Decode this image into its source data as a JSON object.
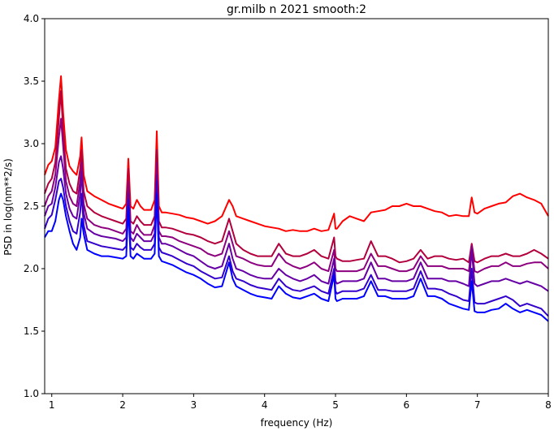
{
  "chart_data": {
    "type": "line",
    "title": "gr.milb n 2021 smooth:2",
    "xlabel": "frequency (Hz)",
    "ylabel": "PSD in log(nm**2/s)",
    "xlim": [
      0.9,
      8.0
    ],
    "ylim": [
      1.0,
      4.0
    ],
    "xticks": [
      "1",
      "2",
      "3",
      "4",
      "5",
      "6",
      "7",
      "8"
    ],
    "yticks": [
      "1.0",
      "1.5",
      "2.0",
      "2.5",
      "3.0",
      "3.5",
      "4.0"
    ],
    "grid": false,
    "legend": "none",
    "series": [
      {
        "color": "#ff0000",
        "x": [
          0.9,
          0.95,
          1.0,
          1.05,
          1.1,
          1.13,
          1.16,
          1.2,
          1.25,
          1.3,
          1.35,
          1.4,
          1.42,
          1.45,
          1.5,
          1.6,
          1.7,
          1.8,
          1.9,
          2.0,
          2.05,
          2.08,
          2.11,
          2.15,
          2.2,
          2.25,
          2.3,
          2.4,
          2.45,
          2.48,
          2.51,
          2.55,
          2.6,
          2.7,
          2.8,
          2.9,
          3.0,
          3.1,
          3.2,
          3.3,
          3.4,
          3.5,
          3.55,
          3.6,
          3.7,
          3.8,
          3.9,
          4.0,
          4.1,
          4.2,
          4.3,
          4.4,
          4.5,
          4.6,
          4.7,
          4.8,
          4.9,
          4.98,
          5.0,
          5.02,
          5.1,
          5.2,
          5.3,
          5.4,
          5.5,
          5.6,
          5.7,
          5.8,
          5.9,
          6.0,
          6.1,
          6.2,
          6.3,
          6.4,
          6.5,
          6.6,
          6.7,
          6.8,
          6.88,
          6.92,
          6.96,
          7.0,
          7.1,
          7.2,
          7.3,
          7.4,
          7.5,
          7.6,
          7.7,
          7.8,
          7.9,
          8.0
        ],
        "y": [
          2.75,
          2.83,
          2.86,
          2.97,
          3.35,
          3.54,
          3.25,
          2.95,
          2.82,
          2.78,
          2.75,
          2.9,
          3.05,
          2.75,
          2.62,
          2.58,
          2.55,
          2.52,
          2.5,
          2.48,
          2.52,
          2.88,
          2.5,
          2.48,
          2.55,
          2.5,
          2.47,
          2.47,
          2.55,
          3.1,
          2.5,
          2.45,
          2.45,
          2.44,
          2.43,
          2.41,
          2.4,
          2.38,
          2.36,
          2.38,
          2.42,
          2.55,
          2.5,
          2.42,
          2.4,
          2.38,
          2.36,
          2.34,
          2.33,
          2.32,
          2.3,
          2.31,
          2.3,
          2.3,
          2.32,
          2.3,
          2.31,
          2.44,
          2.32,
          2.32,
          2.38,
          2.42,
          2.4,
          2.38,
          2.45,
          2.46,
          2.47,
          2.5,
          2.5,
          2.52,
          2.5,
          2.5,
          2.48,
          2.46,
          2.45,
          2.42,
          2.43,
          2.42,
          2.42,
          2.57,
          2.45,
          2.44,
          2.48,
          2.5,
          2.52,
          2.53,
          2.58,
          2.6,
          2.57,
          2.55,
          2.52,
          2.42
        ]
      },
      {
        "color": "#b2003f",
        "x": [
          0.9,
          0.95,
          1.0,
          1.05,
          1.1,
          1.13,
          1.16,
          1.2,
          1.25,
          1.3,
          1.35,
          1.4,
          1.42,
          1.45,
          1.5,
          1.6,
          1.7,
          1.8,
          1.9,
          2.0,
          2.05,
          2.08,
          2.11,
          2.15,
          2.2,
          2.25,
          2.3,
          2.4,
          2.45,
          2.48,
          2.51,
          2.55,
          2.6,
          2.7,
          2.8,
          2.9,
          3.0,
          3.1,
          3.2,
          3.3,
          3.4,
          3.5,
          3.55,
          3.6,
          3.7,
          3.8,
          3.9,
          4.0,
          4.1,
          4.2,
          4.3,
          4.4,
          4.5,
          4.6,
          4.7,
          4.8,
          4.9,
          4.98,
          5.0,
          5.02,
          5.1,
          5.2,
          5.3,
          5.4,
          5.5,
          5.6,
          5.7,
          5.8,
          5.9,
          6.0,
          6.1,
          6.2,
          6.3,
          6.4,
          6.5,
          6.6,
          6.7,
          6.8,
          6.88,
          6.92,
          6.96,
          7.0,
          7.1,
          7.2,
          7.3,
          7.4,
          7.5,
          7.6,
          7.7,
          7.8,
          7.9,
          8.0
        ],
        "y": [
          2.6,
          2.68,
          2.72,
          2.85,
          3.2,
          3.42,
          3.1,
          2.8,
          2.68,
          2.62,
          2.6,
          2.8,
          2.95,
          2.62,
          2.5,
          2.45,
          2.42,
          2.4,
          2.38,
          2.36,
          2.4,
          2.8,
          2.38,
          2.36,
          2.42,
          2.38,
          2.35,
          2.35,
          2.42,
          2.95,
          2.38,
          2.33,
          2.33,
          2.32,
          2.3,
          2.28,
          2.27,
          2.25,
          2.22,
          2.2,
          2.22,
          2.4,
          2.3,
          2.2,
          2.15,
          2.12,
          2.1,
          2.1,
          2.1,
          2.2,
          2.12,
          2.1,
          2.1,
          2.12,
          2.15,
          2.1,
          2.08,
          2.25,
          2.1,
          2.08,
          2.06,
          2.06,
          2.07,
          2.08,
          2.22,
          2.1,
          2.1,
          2.08,
          2.05,
          2.06,
          2.08,
          2.15,
          2.08,
          2.1,
          2.1,
          2.08,
          2.07,
          2.08,
          2.05,
          2.2,
          2.06,
          2.05,
          2.08,
          2.1,
          2.1,
          2.12,
          2.1,
          2.1,
          2.12,
          2.15,
          2.12,
          2.08
        ]
      },
      {
        "color": "#8c007f",
        "x": [
          0.9,
          0.95,
          1.0,
          1.05,
          1.1,
          1.13,
          1.16,
          1.2,
          1.25,
          1.3,
          1.35,
          1.4,
          1.42,
          1.45,
          1.5,
          1.6,
          1.7,
          1.8,
          1.9,
          2.0,
          2.05,
          2.08,
          2.11,
          2.15,
          2.2,
          2.25,
          2.3,
          2.4,
          2.45,
          2.48,
          2.51,
          2.55,
          2.6,
          2.7,
          2.8,
          2.9,
          3.0,
          3.1,
          3.2,
          3.3,
          3.4,
          3.5,
          3.55,
          3.6,
          3.7,
          3.8,
          3.9,
          4.0,
          4.1,
          4.2,
          4.3,
          4.4,
          4.5,
          4.6,
          4.7,
          4.8,
          4.9,
          4.98,
          5.0,
          5.02,
          5.1,
          5.2,
          5.3,
          5.4,
          5.5,
          5.6,
          5.7,
          5.8,
          5.9,
          6.0,
          6.1,
          6.2,
          6.3,
          6.4,
          6.5,
          6.6,
          6.7,
          6.8,
          6.88,
          6.92,
          6.96,
          7.0,
          7.1,
          7.2,
          7.3,
          7.4,
          7.5,
          7.6,
          7.7,
          7.8,
          7.9,
          8.0
        ],
        "y": [
          2.5,
          2.58,
          2.62,
          2.75,
          3.05,
          3.2,
          2.98,
          2.7,
          2.58,
          2.52,
          2.5,
          2.7,
          2.85,
          2.52,
          2.4,
          2.35,
          2.33,
          2.32,
          2.3,
          2.28,
          2.32,
          2.7,
          2.3,
          2.28,
          2.35,
          2.3,
          2.27,
          2.27,
          2.35,
          2.85,
          2.3,
          2.26,
          2.26,
          2.25,
          2.22,
          2.2,
          2.18,
          2.16,
          2.12,
          2.1,
          2.12,
          2.3,
          2.2,
          2.1,
          2.08,
          2.05,
          2.03,
          2.02,
          2.02,
          2.12,
          2.05,
          2.02,
          2.0,
          2.02,
          2.05,
          2.0,
          1.98,
          2.15,
          2.0,
          1.98,
          1.98,
          1.98,
          1.98,
          2.0,
          2.12,
          2.02,
          2.02,
          2.0,
          1.98,
          1.98,
          2.0,
          2.1,
          2.02,
          2.02,
          2.02,
          2.0,
          2.0,
          2.0,
          1.98,
          2.18,
          1.98,
          1.97,
          2.0,
          2.02,
          2.02,
          2.05,
          2.02,
          2.02,
          2.04,
          2.05,
          2.05,
          2.0
        ]
      },
      {
        "color": "#6600a5",
        "x": [
          0.9,
          0.95,
          1.0,
          1.05,
          1.1,
          1.13,
          1.16,
          1.2,
          1.25,
          1.3,
          1.35,
          1.4,
          1.42,
          1.45,
          1.5,
          1.6,
          1.7,
          1.8,
          1.9,
          2.0,
          2.05,
          2.08,
          2.11,
          2.15,
          2.2,
          2.25,
          2.3,
          2.4,
          2.45,
          2.48,
          2.51,
          2.55,
          2.6,
          2.7,
          2.8,
          2.9,
          3.0,
          3.1,
          3.2,
          3.3,
          3.4,
          3.5,
          3.55,
          3.6,
          3.7,
          3.8,
          3.9,
          4.0,
          4.1,
          4.2,
          4.3,
          4.4,
          4.5,
          4.6,
          4.7,
          4.8,
          4.9,
          4.98,
          5.0,
          5.02,
          5.1,
          5.2,
          5.3,
          5.4,
          5.5,
          5.6,
          5.7,
          5.8,
          5.9,
          6.0,
          6.1,
          6.2,
          6.3,
          6.4,
          6.5,
          6.6,
          6.7,
          6.8,
          6.88,
          6.92,
          6.96,
          7.0,
          7.1,
          7.2,
          7.3,
          7.4,
          7.5,
          7.6,
          7.7,
          7.8,
          7.9,
          8.0
        ],
        "y": [
          2.42,
          2.5,
          2.52,
          2.65,
          2.85,
          2.9,
          2.8,
          2.6,
          2.48,
          2.42,
          2.4,
          2.6,
          2.78,
          2.45,
          2.32,
          2.28,
          2.26,
          2.25,
          2.24,
          2.22,
          2.25,
          2.6,
          2.25,
          2.22,
          2.28,
          2.25,
          2.22,
          2.22,
          2.28,
          2.75,
          2.25,
          2.2,
          2.2,
          2.18,
          2.15,
          2.12,
          2.1,
          2.06,
          2.02,
          2.0,
          2.02,
          2.2,
          2.08,
          2.0,
          1.98,
          1.95,
          1.93,
          1.92,
          1.92,
          2.0,
          1.95,
          1.92,
          1.9,
          1.92,
          1.95,
          1.9,
          1.88,
          2.08,
          1.9,
          1.88,
          1.9,
          1.9,
          1.9,
          1.92,
          2.05,
          1.92,
          1.92,
          1.9,
          1.9,
          1.9,
          1.92,
          2.05,
          1.92,
          1.92,
          1.92,
          1.9,
          1.9,
          1.88,
          1.86,
          2.15,
          1.88,
          1.86,
          1.88,
          1.9,
          1.9,
          1.92,
          1.9,
          1.88,
          1.9,
          1.88,
          1.86,
          1.82
        ]
      },
      {
        "color": "#3300cc",
        "x": [
          0.9,
          0.95,
          1.0,
          1.05,
          1.1,
          1.13,
          1.16,
          1.2,
          1.25,
          1.3,
          1.35,
          1.4,
          1.42,
          1.45,
          1.5,
          1.6,
          1.7,
          1.8,
          1.9,
          2.0,
          2.05,
          2.08,
          2.11,
          2.15,
          2.2,
          2.25,
          2.3,
          2.4,
          2.45,
          2.48,
          2.51,
          2.55,
          2.6,
          2.7,
          2.8,
          2.9,
          3.0,
          3.1,
          3.2,
          3.3,
          3.4,
          3.5,
          3.55,
          3.6,
          3.7,
          3.8,
          3.9,
          4.0,
          4.1,
          4.2,
          4.3,
          4.4,
          4.5,
          4.6,
          4.7,
          4.8,
          4.9,
          4.98,
          5.0,
          5.02,
          5.1,
          5.2,
          5.3,
          5.4,
          5.5,
          5.6,
          5.7,
          5.8,
          5.9,
          6.0,
          6.1,
          6.2,
          6.3,
          6.4,
          6.5,
          6.6,
          6.7,
          6.8,
          6.88,
          6.92,
          6.96,
          7.0,
          7.1,
          7.2,
          7.3,
          7.4,
          7.5,
          7.6,
          7.7,
          7.8,
          7.9,
          8.0
        ],
        "y": [
          2.32,
          2.4,
          2.43,
          2.55,
          2.7,
          2.72,
          2.65,
          2.5,
          2.38,
          2.3,
          2.28,
          2.45,
          2.6,
          2.35,
          2.22,
          2.2,
          2.18,
          2.17,
          2.16,
          2.15,
          2.18,
          2.55,
          2.17,
          2.15,
          2.2,
          2.17,
          2.15,
          2.15,
          2.2,
          2.7,
          2.17,
          2.13,
          2.12,
          2.1,
          2.07,
          2.04,
          2.02,
          1.98,
          1.95,
          1.92,
          1.93,
          2.1,
          1.98,
          1.92,
          1.9,
          1.87,
          1.85,
          1.84,
          1.83,
          1.92,
          1.86,
          1.83,
          1.82,
          1.84,
          1.86,
          1.82,
          1.8,
          2.0,
          1.82,
          1.8,
          1.82,
          1.82,
          1.82,
          1.84,
          1.95,
          1.83,
          1.83,
          1.82,
          1.82,
          1.82,
          1.84,
          1.98,
          1.84,
          1.84,
          1.83,
          1.8,
          1.78,
          1.75,
          1.74,
          2.0,
          1.73,
          1.72,
          1.72,
          1.74,
          1.76,
          1.78,
          1.75,
          1.7,
          1.72,
          1.7,
          1.68,
          1.62
        ]
      },
      {
        "color": "#0000ff",
        "x": [
          0.9,
          0.95,
          1.0,
          1.05,
          1.1,
          1.13,
          1.16,
          1.2,
          1.25,
          1.3,
          1.35,
          1.4,
          1.42,
          1.45,
          1.5,
          1.6,
          1.7,
          1.8,
          1.9,
          2.0,
          2.05,
          2.08,
          2.11,
          2.15,
          2.2,
          2.25,
          2.3,
          2.4,
          2.45,
          2.48,
          2.51,
          2.55,
          2.6,
          2.7,
          2.8,
          2.9,
          3.0,
          3.1,
          3.2,
          3.3,
          3.4,
          3.5,
          3.55,
          3.6,
          3.7,
          3.8,
          3.9,
          4.0,
          4.1,
          4.2,
          4.3,
          4.4,
          4.5,
          4.6,
          4.7,
          4.8,
          4.9,
          4.98,
          5.0,
          5.02,
          5.1,
          5.2,
          5.3,
          5.4,
          5.5,
          5.6,
          5.7,
          5.8,
          5.9,
          6.0,
          6.1,
          6.2,
          6.3,
          6.4,
          6.5,
          6.6,
          6.7,
          6.8,
          6.88,
          6.92,
          6.96,
          7.0,
          7.1,
          7.2,
          7.3,
          7.4,
          7.5,
          7.6,
          7.7,
          7.8,
          7.9,
          8.0
        ],
        "y": [
          2.25,
          2.3,
          2.3,
          2.38,
          2.55,
          2.6,
          2.55,
          2.42,
          2.3,
          2.2,
          2.15,
          2.25,
          2.4,
          2.28,
          2.15,
          2.12,
          2.1,
          2.1,
          2.09,
          2.08,
          2.1,
          2.5,
          2.1,
          2.08,
          2.12,
          2.1,
          2.08,
          2.08,
          2.12,
          2.6,
          2.1,
          2.06,
          2.05,
          2.03,
          2.0,
          1.97,
          1.95,
          1.92,
          1.88,
          1.85,
          1.86,
          2.05,
          1.92,
          1.86,
          1.83,
          1.8,
          1.78,
          1.77,
          1.76,
          1.86,
          1.8,
          1.77,
          1.76,
          1.78,
          1.8,
          1.76,
          1.74,
          1.95,
          1.76,
          1.74,
          1.76,
          1.76,
          1.76,
          1.78,
          1.9,
          1.78,
          1.78,
          1.76,
          1.76,
          1.76,
          1.78,
          1.92,
          1.78,
          1.78,
          1.76,
          1.72,
          1.7,
          1.68,
          1.67,
          1.9,
          1.66,
          1.65,
          1.65,
          1.67,
          1.68,
          1.72,
          1.68,
          1.65,
          1.67,
          1.65,
          1.63,
          1.58
        ]
      }
    ]
  }
}
